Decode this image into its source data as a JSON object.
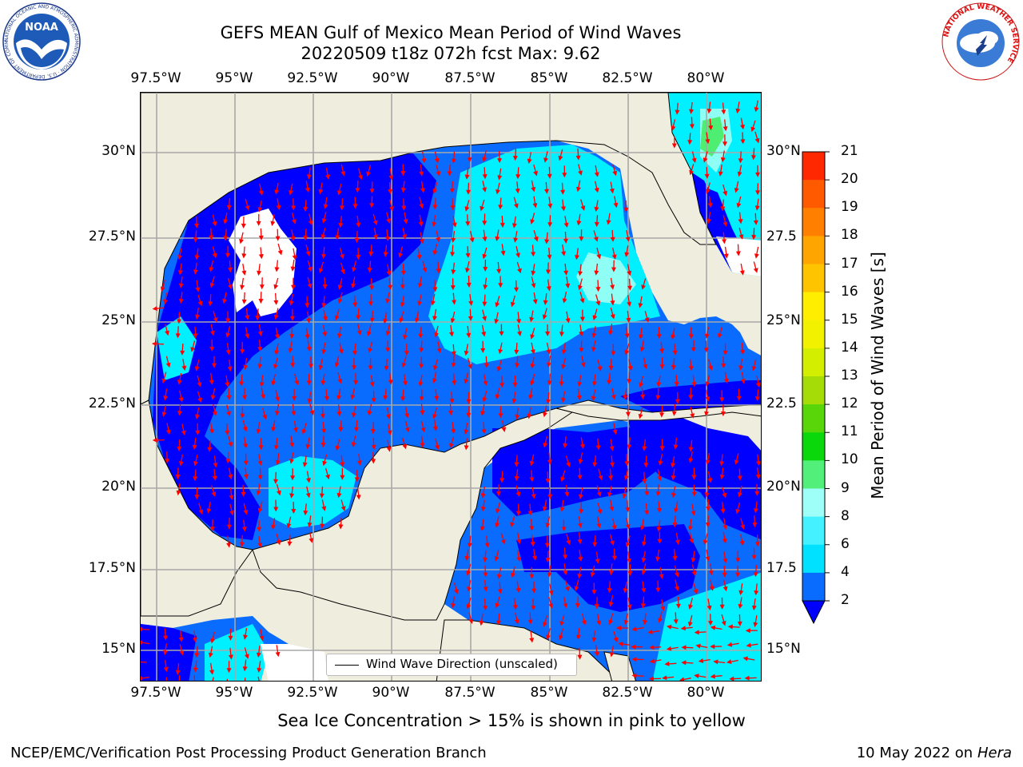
{
  "title_line1": "GEFS MEAN Gulf of Mexico Mean Period of Wind Waves",
  "title_line2": "20220509 t18z 072h fcst   Max: 9.62",
  "logos": {
    "noaa_text": "NOAA",
    "noaa_ring": "NATIONAL OCEANIC AND ATMOSPHERIC ADMINISTRATION · U.S. DEPARTMENT OF COMMERCE",
    "nws_ring": "NATIONAL WEATHER SERVICE"
  },
  "lon_labels": [
    "97.5°W",
    "95°W",
    "92.5°W",
    "90°W",
    "87.5°W",
    "85°W",
    "82.5°W",
    "80°W"
  ],
  "lat_labels_left": [
    "30°N",
    "27.5°N",
    "25°N",
    "22.5°N",
    "20°N",
    "17.5°N",
    "15°N"
  ],
  "lat_labels_right": [
    "30°N",
    "27.5",
    "25°N",
    "22.5",
    "20°N",
    "17.5",
    "15°N"
  ],
  "legend_label": "Wind Wave Direction (unscaled)",
  "colorbar": {
    "label": "Mean Period of Wind Waves [s]",
    "ticks": [
      "2",
      "4",
      "6",
      "8",
      "9",
      "10",
      "11",
      "12",
      "13",
      "14",
      "15",
      "16",
      "17",
      "18",
      "19",
      "20",
      "21"
    ],
    "colors": [
      "#0a6cff",
      "#00e1ff",
      "#44f2ff",
      "#9dfff7",
      "#52f07a",
      "#0ad80a",
      "#58d60a",
      "#a5dc08",
      "#d4ee00",
      "#f2f200",
      "#ffee00",
      "#ffc400",
      "#ffa500",
      "#ff8000",
      "#ff5a00",
      "#ff2800"
    ],
    "extend_color": "#0000ff"
  },
  "field_colors": {
    "land": "#efeddd",
    "sea_dark": "#0000ff",
    "sea_mid": "#0a6cff",
    "sea_light": "#00f0ff",
    "sea_pale": "#8ffff6",
    "sea_green": "#4dee72",
    "arrow": "#ff0000"
  },
  "subtitle": "Sea Ice Concentration > 15% is shown in pink to yellow",
  "footer_left": "NCEP/EMC/Verification Post Processing Product Generation Branch",
  "footer_date": "10 May 2022 on",
  "footer_machine": "Hera"
}
